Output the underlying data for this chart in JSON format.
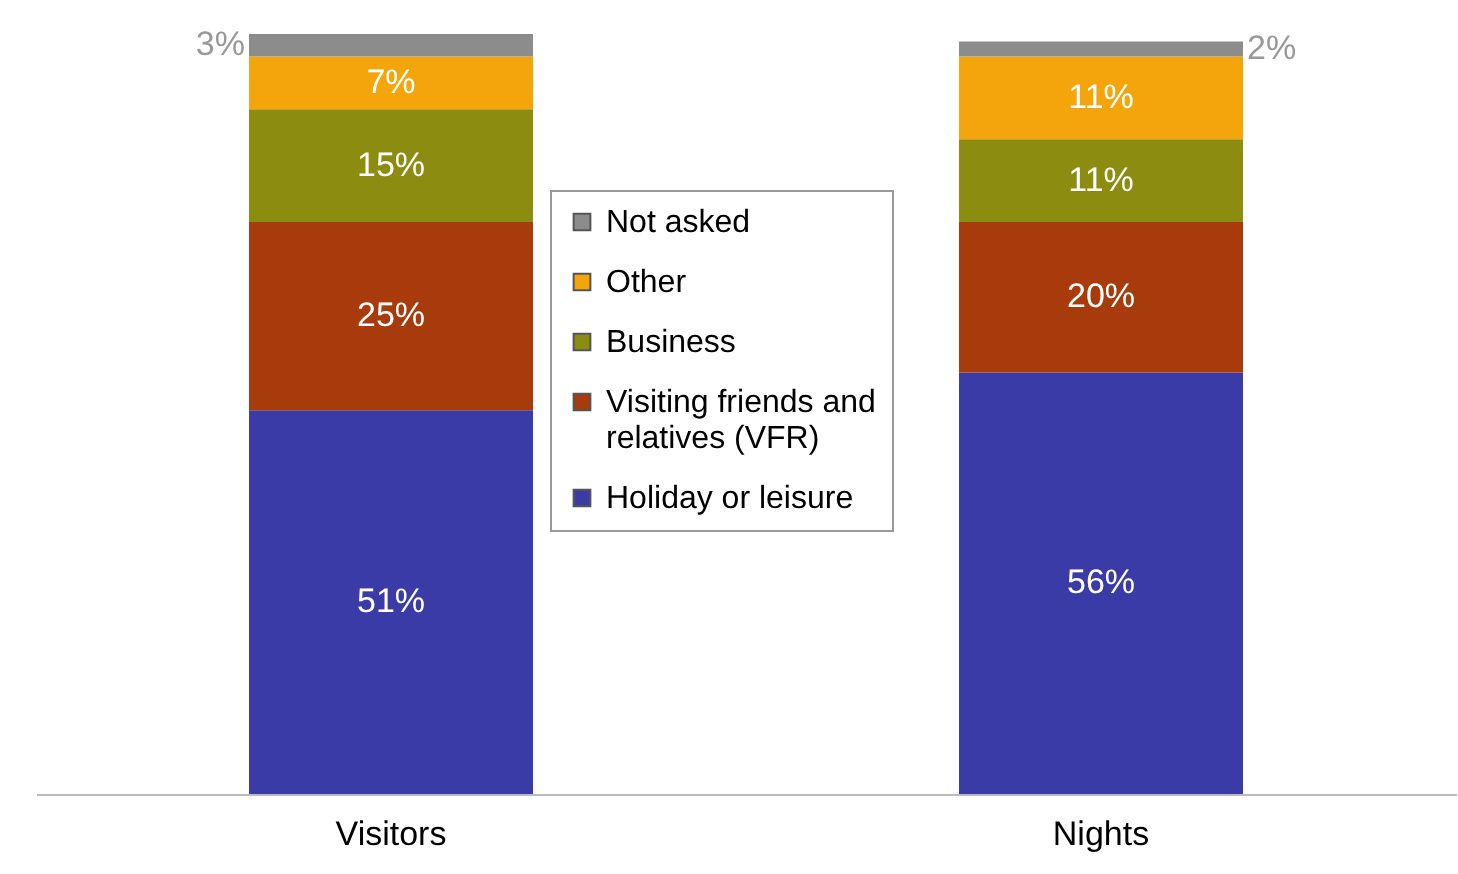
{
  "chart_data": {
    "type": "bar",
    "stacked": true,
    "categories": [
      "Visitors",
      "Nights"
    ],
    "series": [
      {
        "name": "Holiday or leisure",
        "color": "#3b3ba8",
        "values": [
          51,
          56
        ],
        "value_labels": [
          "51%",
          "56%"
        ]
      },
      {
        "name": "Visiting friends and relatives (VFR)",
        "color": "#a83b0c",
        "values": [
          25,
          20
        ],
        "value_labels": [
          "25%",
          "20%"
        ]
      },
      {
        "name": "Business",
        "color": "#8c8c10",
        "values": [
          15,
          11
        ],
        "value_labels": [
          "15%",
          "11%"
        ]
      },
      {
        "name": "Other",
        "color": "#f5a50c",
        "values": [
          7,
          11
        ],
        "value_labels": [
          "7%",
          "11%"
        ]
      },
      {
        "name": "Not asked",
        "color": "#8c8c8c",
        "values": [
          3,
          2
        ],
        "value_labels": [
          "3%",
          "2%"
        ]
      }
    ],
    "legend": "center",
    "grid": false
  }
}
